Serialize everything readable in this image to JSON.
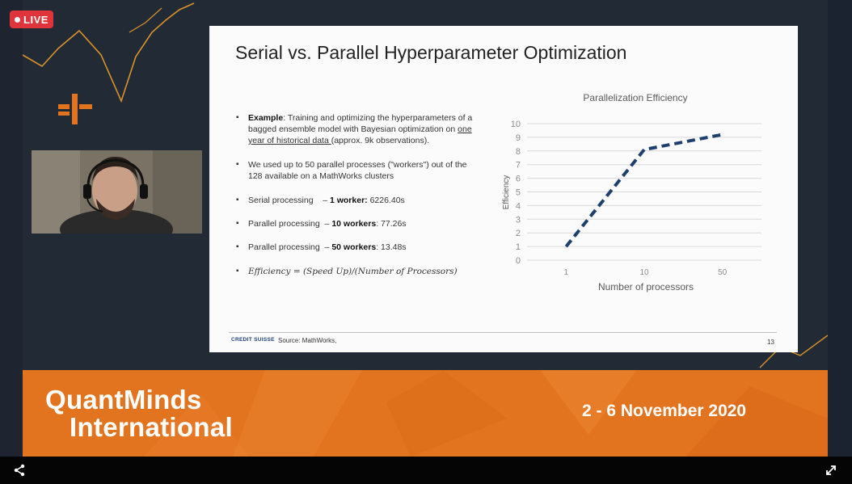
{
  "stream": {
    "live_label": "LIVE"
  },
  "slide": {
    "title": "Serial vs. Parallel Hyperparameter Optimization",
    "bullets": {
      "example_bold": "Example",
      "example_rest": ": Training and optimizing the hyperparameters of a bagged ensemble model with Bayesian optimization on ",
      "example_link": "one year of historical data ",
      "example_tail": "(approx. 9k observations).",
      "workers": "We used up to 50 parallel processes (\"workers\") out of the 128 available on a MathWorks clusters",
      "serial_label": "Serial processing    – ",
      "serial_bold": "1 worker:",
      "serial_value": " 6226.40s",
      "parallel10_label": "Parallel processing  – ",
      "parallel10_bold": "10 workers",
      "parallel10_value": ": 77.26s",
      "parallel50_label": "Parallel processing  – ",
      "parallel50_bold": "50 workers",
      "parallel50_value": ": 13.48s",
      "formula": "Efficiency = (Speed Up)/(Number of Processors)"
    },
    "footer": {
      "logo_text": "CREDIT SUISSE",
      "source": "Source: MathWorks,",
      "page": "13"
    }
  },
  "chart_data": {
    "type": "line",
    "title": "Parallelization Efficiency",
    "xlabel": "Number of processors",
    "ylabel": "Efficiency",
    "categories": [
      "1",
      "10",
      "50"
    ],
    "series": [
      {
        "values": [
          1,
          8.1,
          9.2
        ]
      }
    ],
    "ylim": [
      0,
      10
    ],
    "yticks": [
      "0",
      "1",
      "2",
      "3",
      "4",
      "5",
      "6",
      "7",
      "8",
      "9",
      "10"
    ],
    "grid": true,
    "line_color": "#1f3f6e",
    "line_style": "dashed"
  },
  "banner": {
    "name_line1": "QuantMinds",
    "name_line2": "International",
    "date": "2 - 6 November 2020",
    "color": "#e3741f"
  },
  "controls": {
    "share_icon": "share-icon",
    "fullscreen_icon": "fullscreen-icon"
  }
}
